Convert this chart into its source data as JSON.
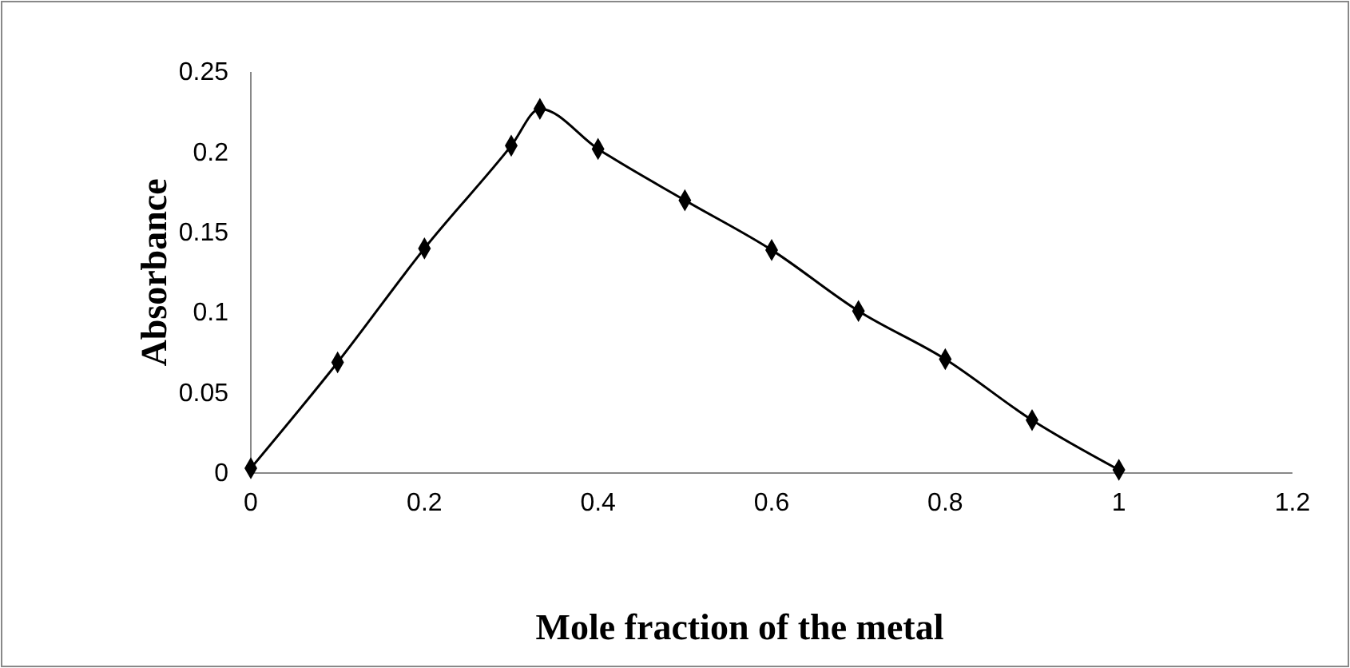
{
  "chart_data": {
    "type": "line",
    "xlabel": "Mole fraction of the metal",
    "ylabel": "Absorbance",
    "x": [
      0,
      0.1,
      0.2,
      0.3,
      0.333,
      0.4,
      0.5,
      0.6,
      0.7,
      0.8,
      0.9,
      1
    ],
    "series": [
      {
        "color": "#000000",
        "values": [
          0.003,
          0.069,
          0.14,
          0.204,
          0.227,
          0.202,
          0.17,
          0.139,
          0.101,
          0.071,
          0.033,
          0.002
        ]
      }
    ],
    "xlim": [
      0,
      1.2
    ],
    "xticks": [
      0,
      0.2,
      0.4,
      0.6,
      0.8,
      1,
      1.2
    ],
    "ylim": [
      0,
      0.25
    ],
    "yticks": [
      0,
      0.05,
      0.1,
      0.15,
      0.2,
      0.25
    ],
    "grid": false,
    "marker": "diamond",
    "line_style": "solid"
  }
}
